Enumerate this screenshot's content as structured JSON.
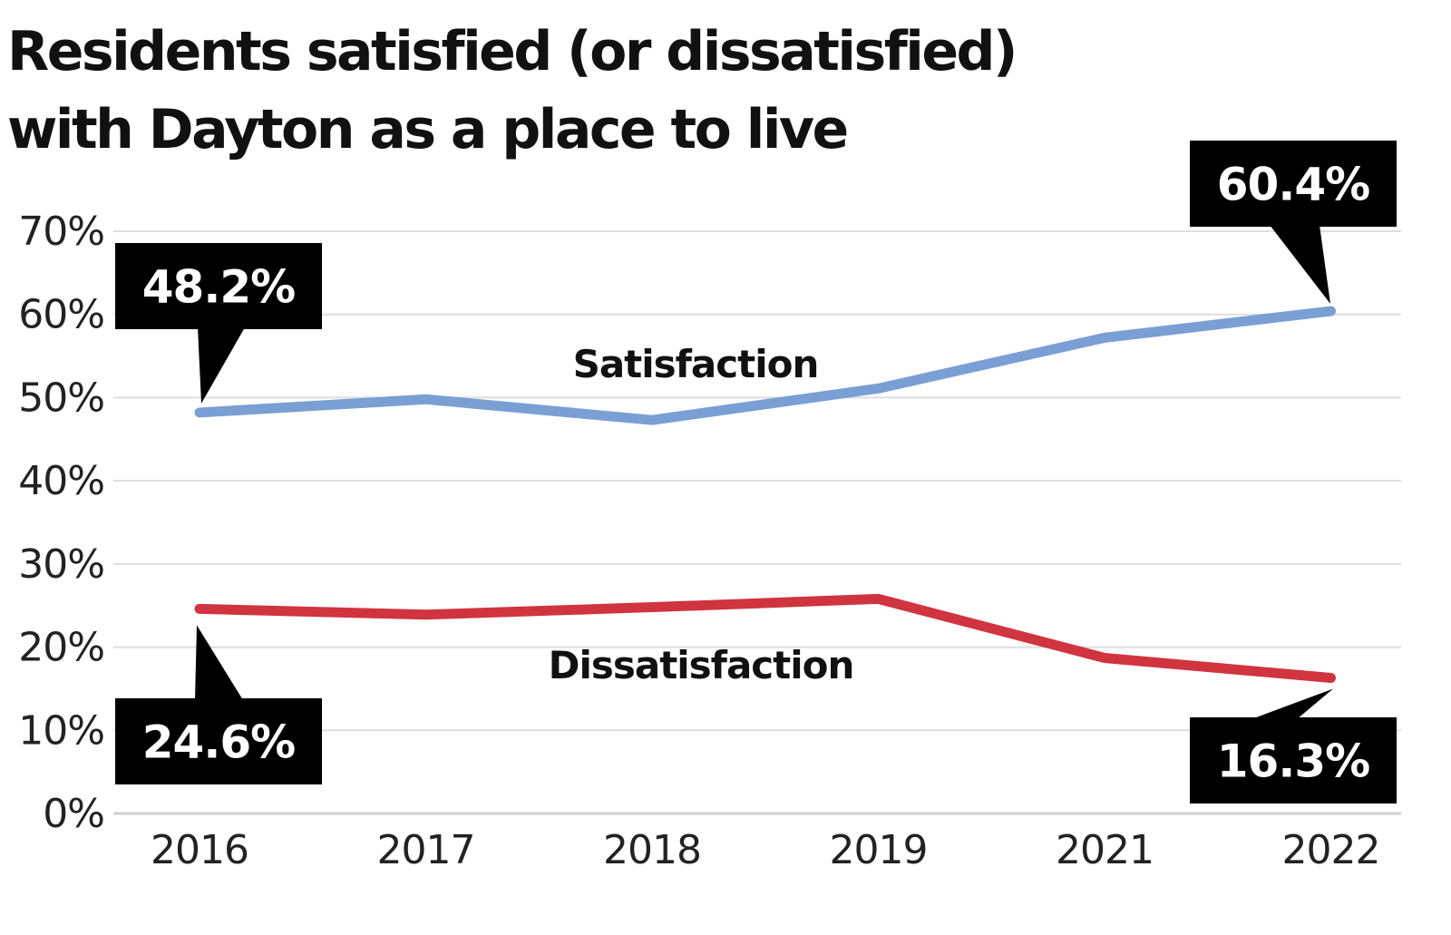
{
  "chart_data": {
    "type": "line",
    "title": "Residents satisfied (or dissatisfied) with Dayton as a place to live",
    "title_lines": [
      "Residents satisfied (or dissatisfied)",
      "with Dayton as a place to live"
    ],
    "xlabel": "",
    "ylabel": "",
    "categories": [
      "2016",
      "2017",
      "2018",
      "2019",
      "2021",
      "2022"
    ],
    "ylim": [
      0,
      70
    ],
    "yticks": [
      0,
      10,
      20,
      30,
      40,
      50,
      60,
      70
    ],
    "ytick_labels": [
      "0%",
      "10%",
      "20%",
      "30%",
      "40%",
      "50%",
      "60%",
      "70%"
    ],
    "grid": true,
    "legend": "inline labels",
    "series": [
      {
        "name": "Satisfaction",
        "color": "#7a9fd4",
        "values": [
          48.2,
          49.8,
          47.3,
          51.1,
          57.2,
          60.4
        ]
      },
      {
        "name": "Dissatisfaction",
        "color": "#d0343f",
        "values": [
          24.6,
          23.9,
          24.8,
          25.8,
          18.7,
          16.3
        ]
      }
    ],
    "annotations": [
      {
        "series": "Satisfaction",
        "category": "2016",
        "text": "48.2%",
        "placement": "above"
      },
      {
        "series": "Satisfaction",
        "category": "2022",
        "text": "60.4%",
        "placement": "above"
      },
      {
        "series": "Dissatisfaction",
        "category": "2016",
        "text": "24.6%",
        "placement": "below"
      },
      {
        "series": "Dissatisfaction",
        "category": "2022",
        "text": "16.3%",
        "placement": "below"
      }
    ]
  }
}
